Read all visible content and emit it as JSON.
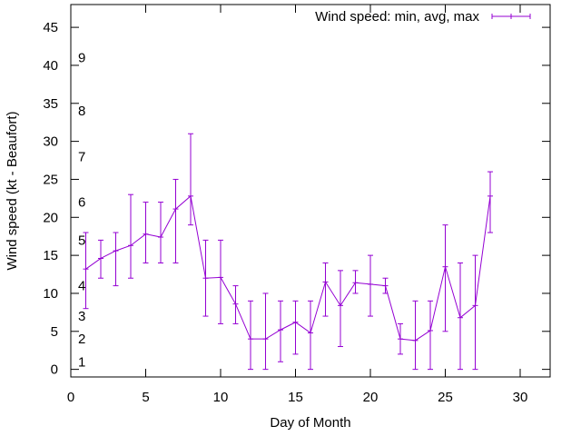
{
  "chart_data": {
    "type": "line",
    "title": "",
    "xlabel": "Day of Month",
    "ylabel": "Wind speed (kt - Beaufort)",
    "xlim": [
      0,
      32
    ],
    "ylim": [
      -1,
      48
    ],
    "x_ticks": [
      0,
      5,
      10,
      15,
      20,
      25,
      30
    ],
    "y_ticks": [
      0,
      5,
      10,
      15,
      20,
      25,
      30,
      35,
      40,
      45
    ],
    "beaufort_labels": [
      {
        "label": "1",
        "y": 1
      },
      {
        "label": "2",
        "y": 4
      },
      {
        "label": "3",
        "y": 7
      },
      {
        "label": "4",
        "y": 11
      },
      {
        "label": "5",
        "y": 17
      },
      {
        "label": "6",
        "y": 22
      },
      {
        "label": "7",
        "y": 28
      },
      {
        "label": "8",
        "y": 34
      },
      {
        "label": "9",
        "y": 41
      }
    ],
    "legend": {
      "label": "Wind speed: min, avg, max",
      "position": "top-right"
    },
    "series_color": "#9400d3",
    "series": [
      {
        "name": "Wind speed: min, avg, max",
        "points": [
          {
            "x": 1,
            "min": 8,
            "avg": 13.2,
            "max": 18
          },
          {
            "x": 2,
            "min": 12,
            "avg": 14.6,
            "max": 17
          },
          {
            "x": 3,
            "min": 11,
            "avg": 15.6,
            "max": 18
          },
          {
            "x": 4,
            "min": 12,
            "avg": 16.3,
            "max": 23
          },
          {
            "x": 5,
            "min": 14,
            "avg": 17.8,
            "max": 22
          },
          {
            "x": 6,
            "min": 14,
            "avg": 17.4,
            "max": 22
          },
          {
            "x": 7,
            "min": 14,
            "avg": 21.1,
            "max": 25
          },
          {
            "x": 8,
            "min": 19,
            "avg": 22.8,
            "max": 31
          },
          {
            "x": 9,
            "min": 7,
            "avg": 12.0,
            "max": 17
          },
          {
            "x": 10,
            "min": 6,
            "avg": 12.1,
            "max": 17
          },
          {
            "x": 11,
            "min": 6,
            "avg": 8.6,
            "max": 11
          },
          {
            "x": 12,
            "min": 0,
            "avg": 4.0,
            "max": 9
          },
          {
            "x": 13,
            "min": 0,
            "avg": 4.0,
            "max": 10
          },
          {
            "x": 14,
            "min": 1,
            "avg": 5.2,
            "max": 9
          },
          {
            "x": 15,
            "min": 2,
            "avg": 6.2,
            "max": 9
          },
          {
            "x": 16,
            "min": 0,
            "avg": 4.8,
            "max": 9
          },
          {
            "x": 17,
            "min": 7,
            "avg": 11.5,
            "max": 14
          },
          {
            "x": 18,
            "min": 3,
            "avg": 8.4,
            "max": 13
          },
          {
            "x": 19,
            "min": 10,
            "avg": 11.4,
            "max": 13
          },
          {
            "x": 20,
            "min": 7,
            "avg": 11.2,
            "max": 15
          },
          {
            "x": 21,
            "min": 10,
            "avg": 11.0,
            "max": 12
          },
          {
            "x": 22,
            "min": 2,
            "avg": 4.0,
            "max": 6
          },
          {
            "x": 23,
            "min": 0,
            "avg": 3.8,
            "max": 9
          },
          {
            "x": 24,
            "min": 0,
            "avg": 5.1,
            "max": 9
          },
          {
            "x": 25,
            "min": 5,
            "avg": 13.5,
            "max": 19
          },
          {
            "x": 26,
            "min": 0,
            "avg": 6.8,
            "max": 14
          },
          {
            "x": 27,
            "min": 0,
            "avg": 8.4,
            "max": 15
          },
          {
            "x": 28,
            "min": 18,
            "avg": 22.8,
            "max": 26
          }
        ]
      }
    ]
  }
}
